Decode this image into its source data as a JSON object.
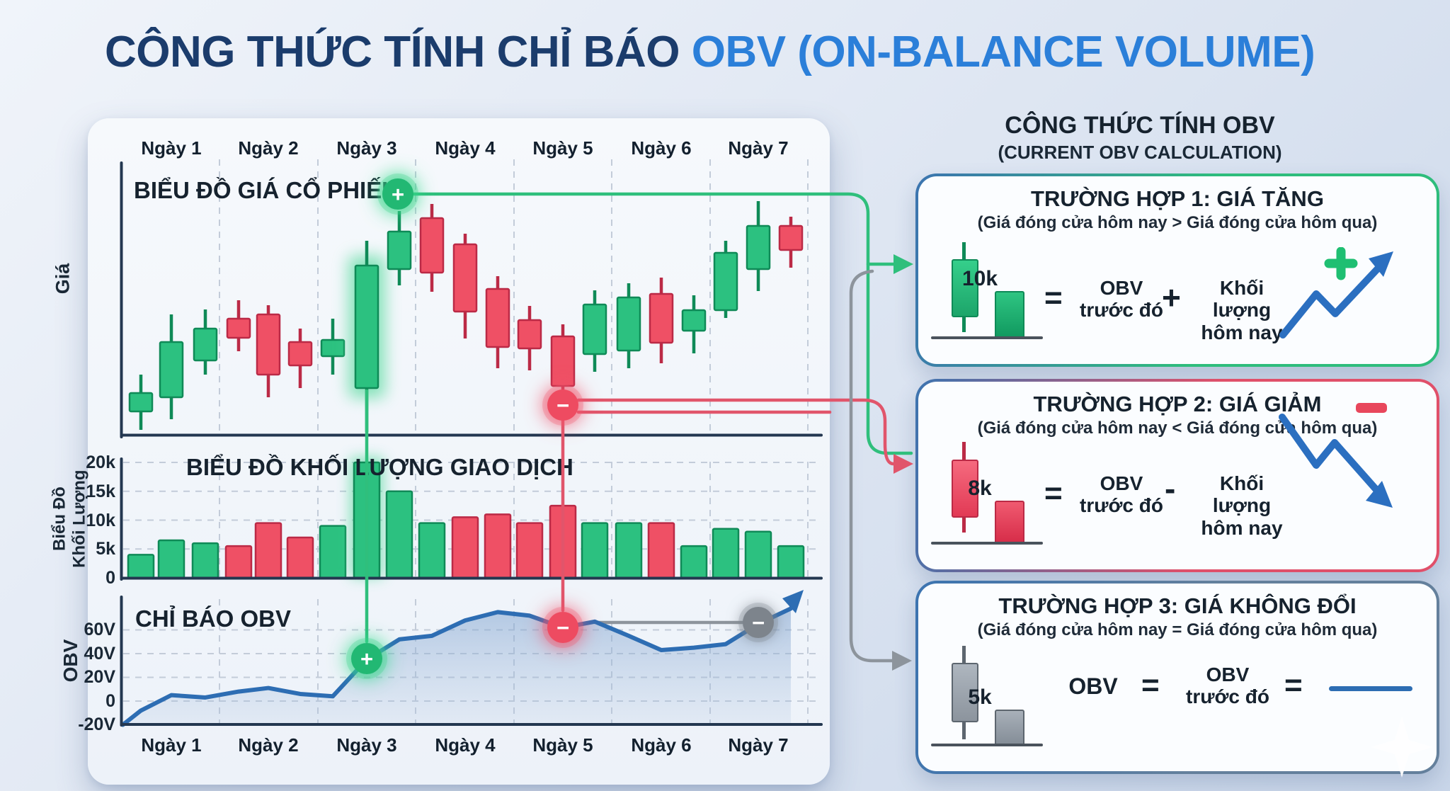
{
  "title": {
    "prefix": "CÔNG THỨC TÍNH CHỈ BÁO ",
    "accent": "OBV (ON-BALANCE VOLUME)"
  },
  "days": [
    "Ngày 1",
    "Ngày 2",
    "Ngày 3",
    "Ngày 4",
    "Ngày 5",
    "Ngày 6",
    "Ngày 7"
  ],
  "price_chart": {
    "title": "BIỂU ĐỒ GIÁ CỔ PHIẾU",
    "ylabel": "Giá"
  },
  "volume_chart": {
    "title": "BIỂU ĐỒ KHỐI LƯỢNG GIAO DỊCH",
    "ylabel_line1": "Biểu Đồ",
    "ylabel_line2": "Khối Lượng",
    "ticks": [
      "20k",
      "15k",
      "10k",
      "5k",
      "0"
    ]
  },
  "obv_chart": {
    "title": "CHỈ BÁO OBV",
    "ylabel": "OBV",
    "ticks": [
      "60V",
      "40V",
      "20V",
      "0",
      "-20V"
    ]
  },
  "marker_glyphs": {
    "plus": "+",
    "minus": "−"
  },
  "colors": {
    "navy_title": "#1b3c6c",
    "blue_title": "#2b7fd9",
    "green": "#2cc180",
    "green_dark": "#0f8a57",
    "red": "#ef5065",
    "red_dark": "#bb2a46",
    "gray": "#8d949c",
    "obv_line": "#2d6db3",
    "axis": "#233750",
    "grid": "#c3ccd9",
    "connector_green": "#2fbf7c",
    "connector_red": "#e1556b"
  },
  "chart_data": [
    {
      "type": "candlestick",
      "title": "BIỂU ĐỒ GIÁ CỔ PHIẾU",
      "x_labels": [
        "Ngày 1",
        "Ngày 2",
        "Ngày 3",
        "Ngày 4",
        "Ngày 5",
        "Ngày 6",
        "Ngày 7"
      ],
      "note": "no numeric price axis shown; candle geometry in page px (y down)",
      "candles": [
        {
          "dir": "up",
          "body": [
            555,
            581
          ],
          "wick": [
            529,
            607
          ]
        },
        {
          "dir": "up",
          "body": [
            483,
            561
          ],
          "wick": [
            444,
            592
          ]
        },
        {
          "dir": "up",
          "body": [
            464,
            509
          ],
          "wick": [
            437,
            529
          ]
        },
        {
          "dir": "down",
          "body": [
            450,
            477
          ],
          "wick": [
            424,
            496
          ]
        },
        {
          "dir": "down",
          "body": [
            444,
            529
          ],
          "wick": [
            431,
            561
          ]
        },
        {
          "dir": "down",
          "body": [
            483,
            516
          ],
          "wick": [
            464,
            548
          ]
        },
        {
          "dir": "up",
          "body": [
            480,
            503
          ],
          "wick": [
            450,
            529
          ]
        },
        {
          "dir": "up",
          "body": [
            375,
            548
          ],
          "wick": [
            340,
            610
          ],
          "highlight": "green-glow"
        },
        {
          "dir": "up",
          "body": [
            327,
            380
          ],
          "wick": [
            298,
            403
          ],
          "marker": "plus-above"
        },
        {
          "dir": "down",
          "body": [
            308,
            385
          ],
          "wick": [
            288,
            412
          ]
        },
        {
          "dir": "down",
          "body": [
            345,
            440
          ],
          "wick": [
            330,
            478
          ]
        },
        {
          "dir": "down",
          "body": [
            408,
            490
          ],
          "wick": [
            390,
            520
          ]
        },
        {
          "dir": "down",
          "body": [
            452,
            492
          ],
          "wick": [
            432,
            523
          ]
        },
        {
          "dir": "down",
          "body": [
            475,
            545
          ],
          "wick": [
            458,
            592
          ],
          "marker": "minus-below"
        },
        {
          "dir": "up",
          "body": [
            430,
            500
          ],
          "wick": [
            410,
            525
          ]
        },
        {
          "dir": "up",
          "body": [
            420,
            495
          ],
          "wick": [
            400,
            520
          ]
        },
        {
          "dir": "down",
          "body": [
            415,
            484
          ],
          "wick": [
            392,
            513
          ]
        },
        {
          "dir": "up",
          "body": [
            438,
            467
          ],
          "wick": [
            417,
            499
          ]
        },
        {
          "dir": "up",
          "body": [
            357,
            438
          ],
          "wick": [
            340,
            449
          ]
        },
        {
          "dir": "up",
          "body": [
            319,
            380
          ],
          "wick": [
            284,
            411
          ]
        },
        {
          "dir": "down",
          "body": [
            319,
            353
          ],
          "wick": [
            306,
            378
          ]
        }
      ]
    },
    {
      "type": "bar",
      "title": "BIỂU ĐỒ KHỐI LƯỢNG GIAO DỊCH",
      "ylabel": "Biểu Đồ Khối Lượng",
      "unit": "k",
      "ylim": [
        0,
        20
      ],
      "yticks": [
        0,
        5,
        10,
        15,
        20
      ],
      "values": [
        4,
        6.5,
        6,
        5.5,
        9.5,
        7,
        9,
        20,
        15,
        9.5,
        10.5,
        11,
        9.5,
        12.5,
        9.5,
        9.5,
        9.5,
        5.5,
        8.5,
        8,
        5.5
      ],
      "dirs": [
        "up",
        "up",
        "up",
        "down",
        "down",
        "down",
        "up",
        "up",
        "up",
        "up",
        "down",
        "down",
        "down",
        "down",
        "up",
        "up",
        "down",
        "up",
        "up",
        "up",
        "up"
      ],
      "highlight_index": 7
    },
    {
      "type": "line",
      "title": "CHỈ BÁO OBV",
      "ylabel": "OBV",
      "unit": "V",
      "ylim": [
        -20,
        80
      ],
      "yticks": [
        -20,
        0,
        20,
        40,
        60
      ],
      "values": [
        -20,
        -8,
        5,
        3,
        8,
        11,
        6,
        4,
        35,
        52,
        55,
        68,
        75,
        72,
        62,
        67,
        55,
        43,
        45,
        48,
        65,
        78
      ],
      "markers": [
        {
          "at_value": 35,
          "type": "plus",
          "color": "green"
        },
        {
          "at_value": 62,
          "type": "minus",
          "color": "red"
        },
        {
          "at_value": 65,
          "type": "minus",
          "color": "gray"
        }
      ],
      "gray_reference_line": {
        "from_value": 67,
        "to_value": 65
      },
      "area_fill": true,
      "end_arrow": true
    }
  ],
  "right_panel": {
    "heading": "CÔNG THỨC TÍNH OBV",
    "subheading": "(CURRENT OBV CALCULATION)",
    "cases": [
      {
        "title": "TRƯỜNG HỢP 1: GIÁ TĂNG",
        "condition": "(Giá đóng cửa hôm nay > Giá đóng cửa hôm qua)",
        "volume_label": "10k",
        "formula": {
          "eq": "=",
          "left_l1": "OBV",
          "left_l2": "trước đó",
          "op": "+",
          "right_l1": "Khối lượng",
          "right_l2": "hôm nay"
        },
        "trend": "up"
      },
      {
        "title": "TRƯỜNG HỢP 2: GIÁ GIẢM",
        "condition": "(Giá đóng cửa hôm nay < Giá đóng cửa hôm qua)",
        "volume_label": "8k",
        "formula": {
          "eq": "=",
          "left_l1": "OBV",
          "left_l2": "trước đó",
          "op": "-",
          "right_l1": "Khối lượng",
          "right_l2": "hôm nay"
        },
        "trend": "down"
      },
      {
        "title": "TRƯỜNG HỢP 3: GIÁ KHÔNG ĐỔI",
        "condition": "(Giá đóng cửa hôm nay = Giá đóng cửa hôm qua)",
        "volume_label": "5k",
        "formula": {
          "lhs": "OBV",
          "eq": "=",
          "left_l1": "OBV",
          "left_l2": "trước đó",
          "eq2": "="
        },
        "trend": "flat"
      }
    ]
  }
}
